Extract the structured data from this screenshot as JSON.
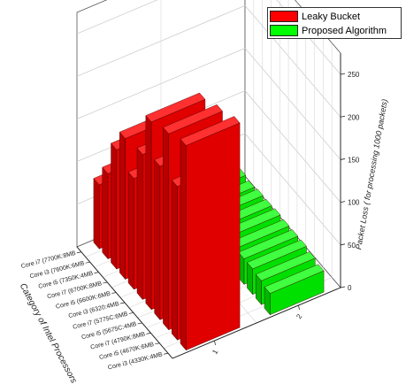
{
  "chart_data": {
    "type": "bar",
    "subtype": "3d-grouped-bar",
    "title": "",
    "zlabel": "Packet Loss ( for processing 1000 packets)",
    "xlabel": "Category of Intel Processors",
    "ylabel": "",
    "categories": [
      "Core i3 (4330K:4MB)",
      "Core i5 (4670K:6MB)",
      "Core i7 (4790K:8MB)",
      "Core i5 (5675C:4MB)",
      "Core i7 (5775C:6MB)",
      "Core i3 (6320:4MB)",
      "Core i5 (6600K:6MB)",
      "Core i7 (6700K:8MB)",
      "Core i5 (7350K:4MB)",
      "Core i3 (7600K:6MB)",
      "Core i7 (7700K:8MB)"
    ],
    "category_labels_visible": [
      "Core i3 (4330K:4MB",
      "Core i5 (4670K:6MB",
      "Core i7 (4790K:8MB",
      "Core i5 (5675C:4MB",
      "Core i7 (5775C:6MB",
      "Core i3 (6320:4MB",
      "Core i5 (6600K:6MB",
      "Core i7 (6700K:8MB",
      "Core i5 (7350K:4MB",
      "Core i3 (7600K:6MB",
      "Core i7 (7700K:8MB"
    ],
    "depth_ticks": [
      "1",
      "2"
    ],
    "series": [
      {
        "name": "Leaky Bucket",
        "color": "#ff0000",
        "values": [
          240,
          180,
          230,
          180,
          220,
          170,
          130,
          165,
          140,
          100,
          75
        ]
      },
      {
        "name": "Proposed Algorithm",
        "color": "#00ff00",
        "values": [
          25,
          28,
          30,
          30,
          30,
          31,
          30,
          30,
          28,
          30,
          28
        ]
      }
    ],
    "zlim": [
      0,
      275
    ],
    "zticks": [
      0,
      50,
      100,
      150,
      200,
      250
    ],
    "grid": true,
    "legend_position": "top-right"
  }
}
